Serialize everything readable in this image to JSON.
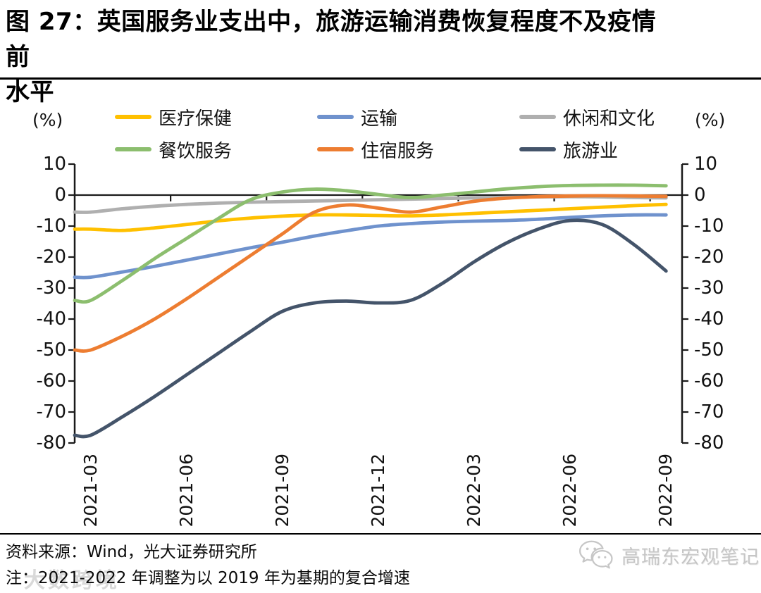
{
  "figure": {
    "title_line1": "图 27：英国服务业支出中，旅游运输消费恢复程度不及疫情前",
    "title_line2": "水平",
    "unit_label_left": "(%)",
    "unit_label_right": "(%)",
    "source_note": "资料来源：Wind，光大证券研究所",
    "footnote": "注：2021-2022 年调整为以 2019 年为基期的复合增速",
    "watermark_left": "大数跨境",
    "watermark_right": "高瑞东宏观笔记"
  },
  "chart_data": {
    "type": "line",
    "smooth": true,
    "grid": false,
    "legend_position": "top",
    "x": [
      "2021-03",
      "2021-04",
      "2021-05",
      "2021-06",
      "2021-07",
      "2021-08",
      "2021-09",
      "2021-10",
      "2021-11",
      "2021-12",
      "2022-01",
      "2022-02",
      "2022-03",
      "2022-04",
      "2022-05",
      "2022-06",
      "2022-07",
      "2022-08",
      "2022-09"
    ],
    "x_tick_labels": [
      "2021-03",
      "2021-06",
      "2021-09",
      "2021-12",
      "2022-03",
      "2022-06",
      "2022-09"
    ],
    "ylim": [
      -80,
      10
    ],
    "yticks": [
      10,
      0,
      -10,
      -20,
      -30,
      -40,
      -50,
      -60,
      -70,
      -80
    ],
    "ylabel": "(%)",
    "series": [
      {
        "name": "医疗保健",
        "color": "#FFC000",
        "values": [
          -11.0,
          -11.4,
          -10.6,
          -9.5,
          -8.3,
          -7.4,
          -6.8,
          -6.4,
          -6.4,
          -6.6,
          -6.7,
          -6.4,
          -5.9,
          -5.4,
          -4.9,
          -4.4,
          -3.9,
          -3.4,
          -3.0
        ]
      },
      {
        "name": "运输",
        "color": "#6F92CD",
        "values": [
          -26.5,
          -24.8,
          -23.0,
          -21.0,
          -19.0,
          -17.0,
          -15.2,
          -13.2,
          -11.5,
          -10.0,
          -9.2,
          -8.7,
          -8.4,
          -8.2,
          -7.8,
          -7.2,
          -6.7,
          -6.4,
          -6.4
        ]
      },
      {
        "name": "休闲和文化",
        "color": "#AFAFAF",
        "values": [
          -5.5,
          -4.4,
          -3.6,
          -3.0,
          -2.6,
          -2.3,
          -2.1,
          -1.9,
          -1.7,
          -1.5,
          -1.3,
          -1.1,
          -0.9,
          -0.7,
          -0.6,
          -0.5,
          -0.6,
          -0.8,
          -0.9
        ]
      },
      {
        "name": "餐饮服务",
        "color": "#8CBE6E",
        "values": [
          -34.0,
          -27.5,
          -20.5,
          -14.0,
          -7.5,
          -1.5,
          1.0,
          1.9,
          1.4,
          0.2,
          -0.8,
          0.0,
          1.0,
          2.0,
          2.7,
          3.1,
          3.2,
          3.2,
          3.0
        ]
      },
      {
        "name": "住宿服务",
        "color": "#ED7D31",
        "values": [
          -50.0,
          -45.5,
          -40.0,
          -33.5,
          -26.5,
          -19.5,
          -12.5,
          -5.5,
          -3.2,
          -4.2,
          -5.5,
          -3.8,
          -2.0,
          -1.0,
          -0.5,
          -0.3,
          -0.2,
          -0.3,
          -0.4
        ]
      },
      {
        "name": "旅游业",
        "color": "#44546A",
        "values": [
          -77.5,
          -71.5,
          -65.0,
          -58.0,
          -51.0,
          -44.0,
          -37.5,
          -34.8,
          -34.2,
          -34.8,
          -34.0,
          -28.5,
          -21.5,
          -15.5,
          -11.0,
          -8.2,
          -9.5,
          -16.0,
          -24.5
        ]
      }
    ]
  }
}
